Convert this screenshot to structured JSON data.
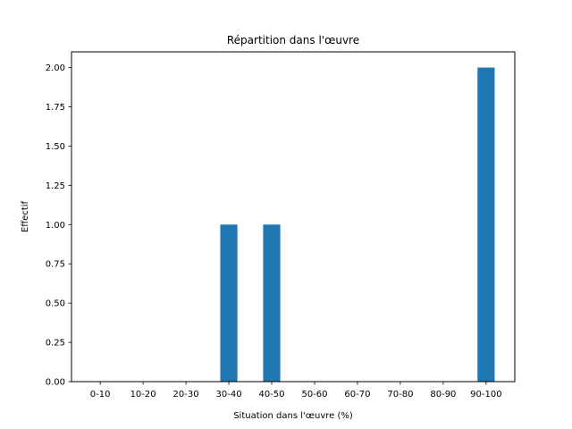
{
  "chart_data": {
    "type": "bar",
    "title": "Répartition dans l'œuvre",
    "xlabel": "Situation dans l'œuvre (%)",
    "ylabel": "Effectif",
    "categories": [
      "0-10",
      "10-20",
      "20-30",
      "30-40",
      "40-50",
      "50-60",
      "60-70",
      "70-80",
      "80-90",
      "90-100"
    ],
    "values": [
      0,
      0,
      0,
      1,
      1,
      0,
      0,
      0,
      0,
      2
    ],
    "ylim": [
      0,
      2.1
    ],
    "yticks": [
      "0.00",
      "0.25",
      "0.50",
      "0.75",
      "1.00",
      "1.25",
      "1.50",
      "1.75",
      "2.00"
    ],
    "grid": false,
    "bar_color": "#1f77b4"
  }
}
